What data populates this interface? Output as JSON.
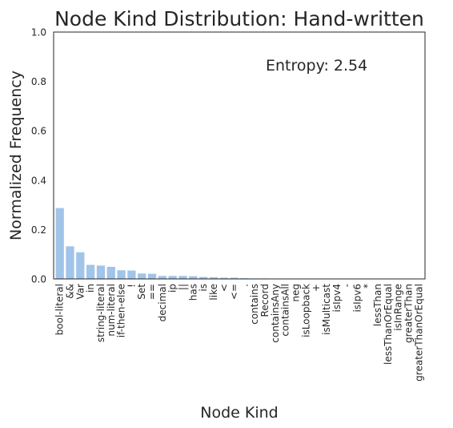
{
  "chart_data": {
    "type": "bar",
    "title": "Node Kind Distribution: Hand-written",
    "xlabel": "Node Kind",
    "ylabel": "Normalized Frequency",
    "ylim": [
      0,
      1.0
    ],
    "yticks": [
      "0.0",
      "0.2",
      "0.4",
      "0.6",
      "0.8",
      "1.0"
    ],
    "annotation": "Entropy: 2.54",
    "bar_color": "#a1c4e9",
    "grid": false,
    "categories": [
      "bool-literal",
      "&&",
      "Var",
      "in",
      "string-literal",
      "num-literal",
      "if-then-else",
      "!",
      "Set",
      "==",
      "decimal",
      "ip",
      "||",
      "has",
      "is",
      "like",
      "<",
      "<=",
      ".",
      "contains",
      "Record",
      "containsAny",
      "containsAll",
      "neg",
      "isLoopback",
      "+",
      "isMulticast",
      "isIpv4",
      "-",
      "isIpv6",
      "*",
      "lessThan",
      "lessThanOrEqual",
      "isInRange",
      "greaterThan",
      "greaterThanOrEqual"
    ],
    "values": [
      0.287,
      0.132,
      0.108,
      0.057,
      0.054,
      0.049,
      0.035,
      0.034,
      0.022,
      0.021,
      0.012,
      0.012,
      0.012,
      0.011,
      0.008,
      0.007,
      0.005,
      0.005,
      0.003,
      0.002,
      0.002,
      0.001,
      0.001,
      0.001,
      0.001,
      0.001,
      0.001,
      0.001,
      0.001,
      0.001,
      0.001,
      0.001,
      0.001,
      0.001,
      0.001,
      0.001
    ]
  }
}
